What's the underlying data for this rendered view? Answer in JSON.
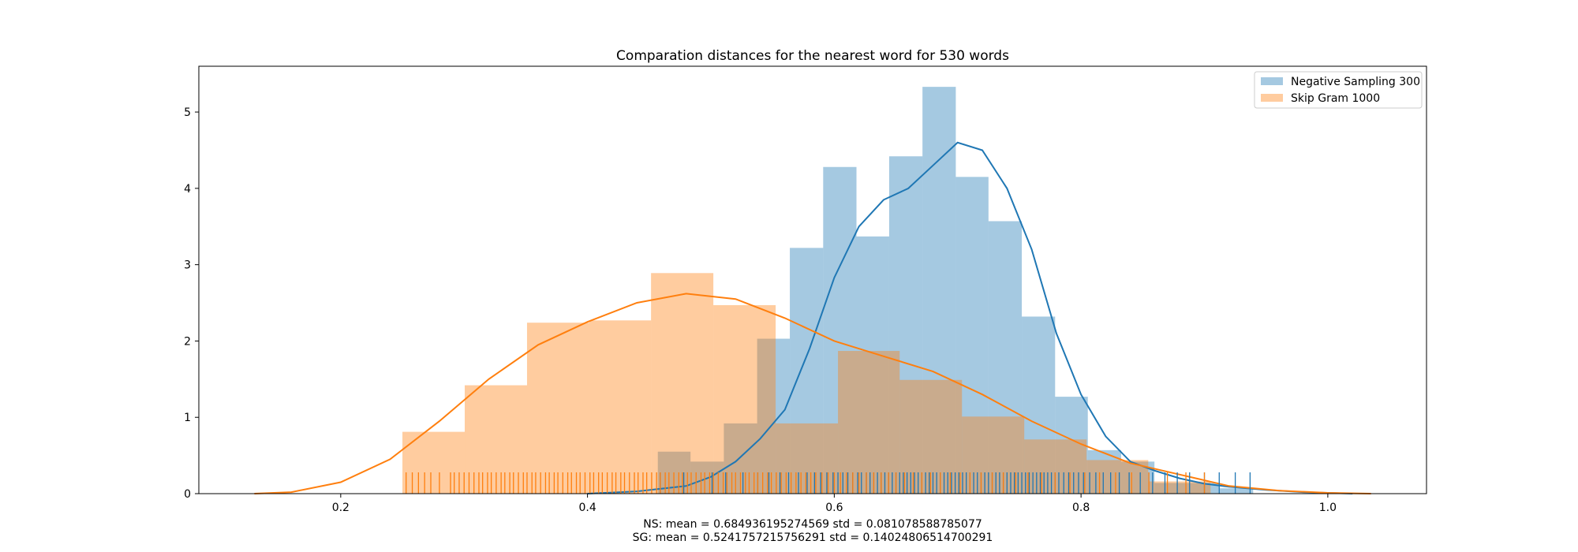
{
  "chart_data": {
    "type": "histogram",
    "title": "Comparation distances for the nearest word for 530 words",
    "xlabel_lines": [
      "NS: mean = 0.684936195274569 std = 0.081078588785077",
      "SG: mean = 0.5241757215756291 std = 0.14024806514700291"
    ],
    "ylabel": "",
    "xlim": [
      0.085,
      1.08
    ],
    "ylim": [
      0,
      5.6
    ],
    "x_ticks": [
      0.2,
      0.4,
      0.6,
      0.8,
      1.0
    ],
    "x_tick_labels": [
      "0.2",
      "0.4",
      "0.6",
      "0.8",
      "1.0"
    ],
    "y_ticks": [
      0,
      1,
      2,
      3,
      4,
      5
    ],
    "y_tick_labels": [
      "0",
      "1",
      "2",
      "3",
      "4",
      "5"
    ],
    "grid": false,
    "legend_position": "top-right",
    "series": [
      {
        "name": "Negative Sampling 300",
        "color": "#1f77b4",
        "bin_edges": [
          0.457,
          0.4835,
          0.5105,
          0.5375,
          0.564,
          0.591,
          0.618,
          0.6445,
          0.6715,
          0.6985,
          0.725,
          0.752,
          0.779,
          0.8055,
          0.8325,
          0.8595,
          0.886,
          0.9125,
          0.9395
        ],
        "densities": [
          0.55,
          0.42,
          0.92,
          2.03,
          3.22,
          4.28,
          3.37,
          4.42,
          5.33,
          4.15,
          3.57,
          2.32,
          1.27,
          0.57,
          0.42,
          0.14,
          0.14,
          0.07
        ],
        "kde_x": [
          0.4,
          0.44,
          0.48,
          0.5,
          0.52,
          0.54,
          0.56,
          0.58,
          0.6,
          0.62,
          0.64,
          0.66,
          0.68,
          0.7,
          0.72,
          0.74,
          0.76,
          0.78,
          0.8,
          0.82,
          0.84,
          0.86,
          0.88,
          0.9,
          0.92,
          0.95,
          0.98,
          1.0,
          1.02
        ],
        "kde_y": [
          0.0,
          0.03,
          0.1,
          0.22,
          0.42,
          0.72,
          1.1,
          1.9,
          2.83,
          3.5,
          3.85,
          4.0,
          4.3,
          4.6,
          4.5,
          4.0,
          3.2,
          2.1,
          1.3,
          0.75,
          0.42,
          0.3,
          0.2,
          0.13,
          0.09,
          0.05,
          0.02,
          0.01,
          0.0
        ],
        "rug": [
          0.459,
          0.478,
          0.501,
          0.512,
          0.526,
          0.538,
          0.547,
          0.556,
          0.563,
          0.571,
          0.578,
          0.584,
          0.589,
          0.594,
          0.599,
          0.603,
          0.607,
          0.611,
          0.615,
          0.619,
          0.622,
          0.626,
          0.629,
          0.632,
          0.635,
          0.638,
          0.641,
          0.644,
          0.647,
          0.65,
          0.653,
          0.656,
          0.659,
          0.662,
          0.665,
          0.668,
          0.671,
          0.674,
          0.677,
          0.68,
          0.683,
          0.686,
          0.689,
          0.692,
          0.695,
          0.698,
          0.701,
          0.704,
          0.707,
          0.71,
          0.713,
          0.716,
          0.719,
          0.722,
          0.725,
          0.728,
          0.731,
          0.734,
          0.737,
          0.74,
          0.743,
          0.746,
          0.749,
          0.752,
          0.755,
          0.758,
          0.761,
          0.764,
          0.767,
          0.77,
          0.773,
          0.776,
          0.779,
          0.782,
          0.786,
          0.79,
          0.794,
          0.798,
          0.802,
          0.807,
          0.812,
          0.818,
          0.824,
          0.831,
          0.839,
          0.848,
          0.858,
          0.868,
          0.878,
          0.888,
          0.9,
          0.912,
          0.925,
          0.937
        ]
      },
      {
        "name": "Skip Gram 1000",
        "color": "#ff7f0e",
        "bin_edges": [
          0.25,
          0.3005,
          0.351,
          0.4015,
          0.4515,
          0.502,
          0.5525,
          0.603,
          0.653,
          0.7035,
          0.754,
          0.8045,
          0.8545,
          0.905
        ],
        "densities": [
          0.81,
          1.42,
          2.24,
          2.27,
          2.89,
          2.47,
          0.92,
          1.87,
          1.49,
          1.01,
          0.71,
          0.44,
          0.16
        ],
        "kde_x": [
          0.13,
          0.16,
          0.2,
          0.24,
          0.28,
          0.32,
          0.36,
          0.4,
          0.44,
          0.48,
          0.52,
          0.56,
          0.6,
          0.64,
          0.68,
          0.72,
          0.76,
          0.8,
          0.84,
          0.88,
          0.92,
          0.96,
          1.0,
          1.035
        ],
        "kde_y": [
          0.0,
          0.02,
          0.15,
          0.45,
          0.95,
          1.5,
          1.95,
          2.25,
          2.5,
          2.62,
          2.55,
          2.3,
          2.0,
          1.8,
          1.6,
          1.3,
          0.95,
          0.65,
          0.4,
          0.25,
          0.1,
          0.04,
          0.01,
          0.0
        ],
        "rug": [
          0.253,
          0.258,
          0.263,
          0.268,
          0.273,
          0.28,
          0.289,
          0.292,
          0.296,
          0.3,
          0.304,
          0.308,
          0.312,
          0.315,
          0.319,
          0.322,
          0.326,
          0.33,
          0.333,
          0.337,
          0.34,
          0.344,
          0.348,
          0.351,
          0.355,
          0.358,
          0.362,
          0.366,
          0.369,
          0.373,
          0.376,
          0.38,
          0.384,
          0.387,
          0.391,
          0.394,
          0.398,
          0.402,
          0.405,
          0.409,
          0.412,
          0.416,
          0.42,
          0.423,
          0.427,
          0.43,
          0.434,
          0.438,
          0.441,
          0.445,
          0.448,
          0.452,
          0.456,
          0.459,
          0.463,
          0.466,
          0.47,
          0.474,
          0.477,
          0.481,
          0.484,
          0.488,
          0.492,
          0.495,
          0.499,
          0.502,
          0.506,
          0.51,
          0.513,
          0.517,
          0.52,
          0.524,
          0.528,
          0.531,
          0.535,
          0.538,
          0.542,
          0.546,
          0.549,
          0.553,
          0.557,
          0.561,
          0.565,
          0.569,
          0.573,
          0.577,
          0.581,
          0.585,
          0.59,
          0.595,
          0.6,
          0.605,
          0.61,
          0.615,
          0.62,
          0.626,
          0.632,
          0.638,
          0.644,
          0.65,
          0.657,
          0.664,
          0.671,
          0.678,
          0.686,
          0.694,
          0.702,
          0.71,
          0.719,
          0.728,
          0.737,
          0.747,
          0.757,
          0.768,
          0.779,
          0.791,
          0.803,
          0.815,
          0.828,
          0.841,
          0.855,
          0.87,
          0.885,
          0.9
        ]
      }
    ]
  }
}
